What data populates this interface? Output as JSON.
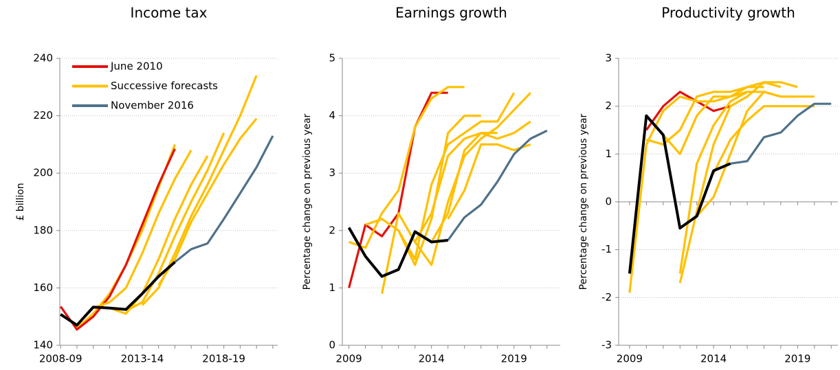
{
  "chart_data": [
    {
      "type": "line",
      "title": "Income tax",
      "y_label": "£ billion",
      "x": [
        2008,
        2009,
        2010,
        2011,
        2012,
        2013,
        2014,
        2015,
        2016,
        2017,
        2018,
        2019,
        2020,
        2021
      ],
      "xlim": [
        2007.95,
        2021.3
      ],
      "xticks": [
        {
          "value": 2008,
          "label": "2008-09"
        },
        {
          "value": 2013,
          "label": "2013-14"
        },
        {
          "value": 2018,
          "label": "2018-19"
        }
      ],
      "ylim": [
        140,
        240
      ],
      "yticks": [
        140,
        160,
        180,
        200,
        220,
        240
      ],
      "grid": true,
      "legend": "upper left",
      "series": [
        {
          "color": "#ffc000",
          "values": [
            null,
            146,
            151,
            158,
            168,
            180,
            195,
            210,
            null,
            null,
            null,
            null,
            null,
            null
          ]
        },
        {
          "color": "#ffc000",
          "values": [
            null,
            null,
            null,
            153,
            151,
            158,
            170,
            184,
            196,
            206,
            null,
            null,
            null,
            null
          ]
        },
        {
          "color": "#ffc000",
          "values": [
            null,
            null,
            null,
            null,
            152,
            155,
            165,
            178,
            190,
            201,
            214,
            null,
            null,
            null
          ]
        },
        {
          "color": "#ffc000",
          "values": [
            null,
            null,
            null,
            null,
            null,
            154,
            160,
            172,
            185,
            196,
            208,
            220,
            234,
            null
          ]
        },
        {
          "color": "#ffc000",
          "values": [
            null,
            null,
            null,
            null,
            null,
            null,
            161,
            170,
            183,
            193,
            203,
            212,
            219,
            null
          ]
        },
        {
          "name": "June 2010",
          "color": "#e3120b",
          "values": [
            153.5,
            145.5,
            150,
            157,
            168,
            182,
            196,
            208.5,
            null,
            null,
            null,
            null,
            null,
            null
          ]
        },
        {
          "name": "Successive forecasts",
          "color": "#ffc000",
          "values": [
            null,
            null,
            153,
            155,
            160,
            172,
            186,
            198,
            208,
            null,
            null,
            null,
            null,
            null
          ]
        },
        {
          "name": "November 2016",
          "color": "#4f7189",
          "values": [
            null,
            null,
            null,
            null,
            null,
            null,
            null,
            169,
            173.5,
            175.5,
            184,
            193,
            202,
            213
          ]
        },
        {
          "color": "#000000",
          "values": [
            150.8,
            147,
            153.3,
            153,
            152.5,
            158,
            164,
            169,
            null,
            null,
            null,
            null,
            null,
            null
          ]
        }
      ]
    },
    {
      "type": "line",
      "title": "Earnings growth",
      "y_label": "Percentage change on previous year",
      "x": [
        2009,
        2010,
        2011,
        2012,
        2013,
        2014,
        2015,
        2016,
        2017,
        2018,
        2019,
        2020,
        2021
      ],
      "xlim": [
        2008.6,
        2021.8
      ],
      "xticks": [
        2009,
        2014,
        2019
      ],
      "ylim": [
        0,
        5
      ],
      "yticks": [
        0,
        1,
        2,
        3,
        4,
        5
      ],
      "grid": true,
      "series": [
        {
          "color": "#e3120b",
          "values": [
            1.0,
            2.1,
            1.9,
            2.3,
            3.8,
            4.4,
            4.4,
            null,
            null,
            null,
            null,
            null,
            null
          ]
        },
        {
          "color": "#ffc000",
          "values": [
            1.8,
            1.7,
            2.3,
            2.7,
            3.8,
            4.3,
            4.5,
            4.5,
            null,
            null,
            null,
            null,
            null
          ]
        },
        {
          "color": "#ffc000",
          "values": [
            null,
            2.1,
            2.2,
            2.0,
            1.4,
            2.2,
            3.7,
            4.0,
            4.0,
            null,
            null,
            null,
            null
          ]
        },
        {
          "color": "#ffc000",
          "values": [
            null,
            null,
            0.9,
            2.3,
            1.8,
            2.3,
            3.3,
            3.6,
            3.7,
            3.7,
            null,
            null,
            null
          ]
        },
        {
          "color": "#ffc000",
          "values": [
            null,
            null,
            null,
            2.0,
            1.5,
            2.8,
            3.5,
            3.7,
            3.9,
            3.9,
            4.4,
            null,
            null
          ]
        },
        {
          "color": "#ffc000",
          "values": [
            null,
            null,
            null,
            null,
            1.8,
            1.4,
            2.5,
            3.3,
            3.6,
            3.8,
            4.1,
            4.4,
            null
          ]
        },
        {
          "color": "#ffc000",
          "values": [
            null,
            null,
            null,
            null,
            null,
            1.8,
            2.3,
            3.4,
            3.7,
            3.6,
            3.7,
            3.9,
            null
          ]
        },
        {
          "color": "#ffc000",
          "values": [
            null,
            null,
            null,
            null,
            null,
            null,
            2.2,
            2.7,
            3.5,
            3.5,
            3.4,
            3.5,
            null
          ]
        },
        {
          "color": "#4f7189",
          "values": [
            null,
            null,
            null,
            null,
            null,
            null,
            1.83,
            2.23,
            2.45,
            2.85,
            3.33,
            3.6,
            3.74
          ]
        },
        {
          "color": "#000000",
          "values": [
            2.05,
            1.55,
            1.2,
            1.32,
            1.98,
            1.8,
            1.83,
            null,
            null,
            null,
            null,
            null,
            null
          ]
        }
      ]
    },
    {
      "type": "line",
      "title": "Productivity growth",
      "y_label": "Percentage change on previous year",
      "x": [
        2009,
        2010,
        2011,
        2012,
        2013,
        2014,
        2015,
        2016,
        2017,
        2018,
        2019,
        2020,
        2021
      ],
      "xlim": [
        2008.35,
        2021.4
      ],
      "xticks": [
        2009,
        2014,
        2019
      ],
      "ylim": [
        -3,
        3
      ],
      "yticks": [
        -3,
        -2,
        -1,
        0,
        1,
        2,
        3
      ],
      "grid": true,
      "series": [
        {
          "color": "#e3120b",
          "values": [
            null,
            1.5,
            2.0,
            2.3,
            2.1,
            1.9,
            2.0,
            null,
            null,
            null,
            null,
            null,
            null
          ]
        },
        {
          "color": "#ffc000",
          "values": [
            -1.9,
            1.2,
            1.9,
            2.2,
            2.1,
            2.1,
            2.2,
            2.3,
            null,
            null,
            null,
            null,
            null
          ]
        },
        {
          "color": "#ffc000",
          "values": [
            null,
            1.3,
            1.2,
            1.5,
            2.2,
            2.3,
            2.3,
            2.4,
            2.4,
            null,
            null,
            null,
            null
          ]
        },
        {
          "color": "#ffc000",
          "values": [
            null,
            null,
            1.4,
            1.0,
            1.8,
            2.2,
            2.2,
            2.4,
            2.5,
            2.4,
            null,
            null,
            null
          ]
        },
        {
          "color": "#ffc000",
          "values": [
            null,
            null,
            null,
            -1.7,
            -0.2,
            1.2,
            2.0,
            2.2,
            2.5,
            2.5,
            2.4,
            null,
            null
          ]
        },
        {
          "color": "#ffc000",
          "values": [
            null,
            null,
            null,
            -1.5,
            0.8,
            1.6,
            2.1,
            2.3,
            2.3,
            2.2,
            2.2,
            null,
            null
          ]
        },
        {
          "color": "#ffc000",
          "values": [
            null,
            null,
            null,
            null,
            -0.3,
            0.1,
            1.0,
            1.9,
            2.3,
            2.2,
            2.2,
            2.2,
            null
          ]
        },
        {
          "color": "#ffc000",
          "values": [
            null,
            null,
            null,
            null,
            null,
            0.6,
            1.3,
            1.7,
            2.0,
            2.0,
            2.0,
            2.0,
            null
          ]
        },
        {
          "color": "#4f7189",
          "values": [
            null,
            null,
            null,
            null,
            null,
            null,
            0.8,
            0.85,
            1.35,
            1.45,
            1.8,
            2.05,
            2.05
          ]
        },
        {
          "color": "#000000",
          "values": [
            -1.5,
            1.8,
            1.4,
            -0.55,
            -0.3,
            0.65,
            0.8,
            null,
            null,
            null,
            null,
            null,
            null
          ]
        }
      ]
    }
  ]
}
